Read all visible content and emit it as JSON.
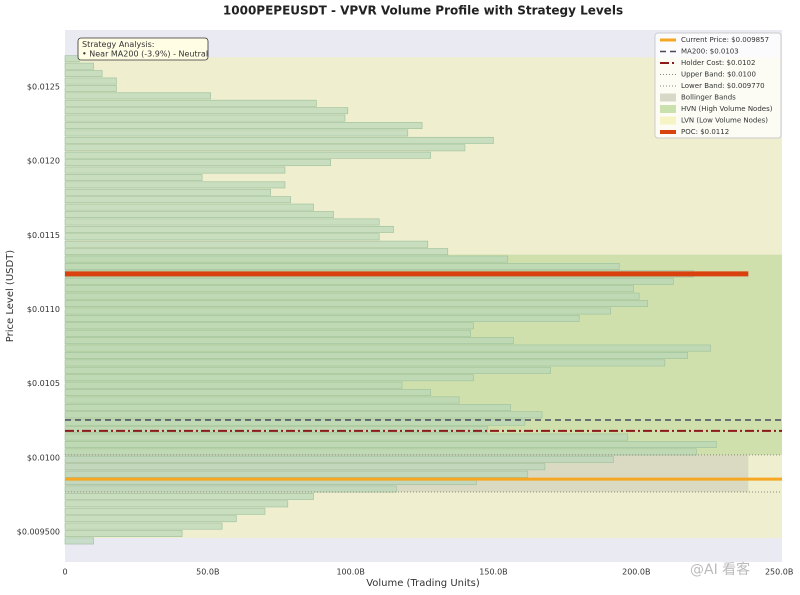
{
  "chart_data": {
    "type": "barh",
    "title": "1000PEPEUSDT - VPVR Volume Profile with Strategy Levels",
    "xlabel": "Volume (Trading Units)",
    "ylabel": "Price Level (USDT)",
    "y": [
      0.00944,
      0.00949,
      0.00954,
      0.00959,
      0.00964,
      0.00969,
      0.00974,
      0.00979,
      0.00984,
      0.00989,
      0.00994,
      0.00999,
      0.01004,
      0.01009,
      0.01014,
      0.01019,
      0.01024,
      0.01029,
      0.01034,
      0.01039,
      0.01044,
      0.01049,
      0.01054,
      0.01059,
      0.01064,
      0.01069,
      0.01074,
      0.01079,
      0.01084,
      0.01089,
      0.01094,
      0.01099,
      0.01104,
      0.01109,
      0.01114,
      0.01119,
      0.01124,
      0.01129,
      0.01134,
      0.01139,
      0.01144,
      0.01149,
      0.01154,
      0.01159,
      0.01164,
      0.01169,
      0.01174,
      0.01179,
      0.01184,
      0.01189,
      0.01194,
      0.01199,
      0.01204,
      0.01209,
      0.01214,
      0.01219,
      0.01224,
      0.01229,
      0.01234,
      0.01239,
      0.01244,
      0.01249,
      0.01254,
      0.01259,
      0.01264,
      0.01269
    ],
    "values": [
      10000000000.0,
      41000000000.0,
      55000000000.0,
      60000000000.0,
      70000000000.0,
      78000000000.0,
      87000000000.0,
      116000000000.0,
      144000000000.0,
      162000000000.0,
      168000000000.0,
      192000000000.0,
      221000000000.0,
      228000000000.0,
      197000000000.0,
      148000000000.0,
      161000000000.0,
      167000000000.0,
      156000000000.0,
      138000000000.0,
      128000000000.0,
      118000000000.0,
      143000000000.0,
      170000000000.0,
      210000000000.0,
      218000000000.0,
      226000000000.0,
      157000000000.0,
      142000000000.0,
      143000000000.0,
      180000000000.0,
      191000000000.0,
      204000000000.0,
      201000000000.0,
      199000000000.0,
      213000000000.0,
      220000000000.0,
      194000000000.0,
      155000000000.0,
      134000000000.0,
      127000000000.0,
      110000000000.0,
      115000000000.0,
      110000000000.0,
      94000000000.0,
      87000000000.0,
      79000000000.0,
      72000000000.0,
      77000000000.0,
      48000000000.0,
      77000000000.0,
      93000000000.0,
      128000000000.0,
      140000000000.0,
      150000000000.0,
      120000000000.0,
      125000000000.0,
      98000000000.0,
      99000000000.0,
      88000000000.0,
      51000000000.0,
      18000000000.0,
      18000000000.0,
      13000000000.0,
      10000000000.0,
      5000000000.0
    ],
    "color": "#b9d6b9",
    "xlim": [
      0,
      251000000000.0
    ],
    "ylim": [
      0.009298,
      0.012884
    ],
    "xticks": [
      0,
      {
        "value": 50000000000.0,
        "label": "50.0B"
      },
      {
        "value": 100000000000.0,
        "label": "100.0B"
      },
      {
        "value": 150000000000.0,
        "label": "150.0B"
      },
      {
        "value": 200000000000.0,
        "label": "200.0B"
      },
      {
        "value": 250000000000.0,
        "label": "250.0B"
      }
    ],
    "yticks": [
      {
        "value": 0.0095,
        "label": "$0.009500"
      },
      {
        "value": 0.01,
        "label": "$0.0100"
      },
      {
        "value": 0.0105,
        "label": "$0.0105"
      },
      {
        "value": 0.011,
        "label": "$0.0110"
      },
      {
        "value": 0.0115,
        "label": "$0.0115"
      },
      {
        "value": 0.012,
        "label": "$0.0120"
      },
      {
        "value": 0.0125,
        "label": "$0.0125"
      }
    ],
    "grid": false,
    "legend": "upper right",
    "overlays": [
      {
        "kind": "line",
        "name": "Current Price: $0.009857",
        "value": 0.009857,
        "color": "#f5a623",
        "style": "solid",
        "span": "full"
      },
      {
        "kind": "line",
        "name": "MA200: $0.0103",
        "value": 0.010255,
        "color": "#4a4a5e",
        "style": "dashed",
        "span": "full"
      },
      {
        "kind": "line",
        "name": "Holder Cost: $0.0102",
        "value": 0.010182,
        "color": "#8b1a1a",
        "style": "dashdot",
        "span": "full"
      },
      {
        "kind": "line",
        "name": "Upper Band: $0.0100",
        "value": 0.01002,
        "color": "#8a8a7a",
        "style": "dotted",
        "span": "full"
      },
      {
        "kind": "line",
        "name": "Lower Band: $0.009770",
        "value": 0.00977,
        "color": "#8a8a7a",
        "style": "dotted",
        "span": "full"
      },
      {
        "kind": "zone",
        "name": "Bollinger Bands",
        "range": [
          0.00977,
          0.01002
        ],
        "color": "#c9c9b6",
        "span": "profile"
      },
      {
        "kind": "zone",
        "name": "HVN (High Volume Nodes)",
        "range": [
          0.01002,
          0.01137
        ],
        "color": "#b5d68f",
        "span": "full"
      },
      {
        "kind": "zone",
        "name": "LVN (Low Volume Nodes)",
        "range": [
          0.00946,
          0.0127
        ],
        "color": "#f3f0b0",
        "span": "full"
      },
      {
        "kind": "line",
        "name": "POC: $0.0112",
        "value": 0.01124,
        "color": "#d9420f",
        "style": "heavy",
        "span": "profile"
      }
    ],
    "annotation": [
      "Strategy Analysis:",
      "• Near MA200 (-3.9%) - Neutral"
    ],
    "watermark": "@AI 看客"
  }
}
